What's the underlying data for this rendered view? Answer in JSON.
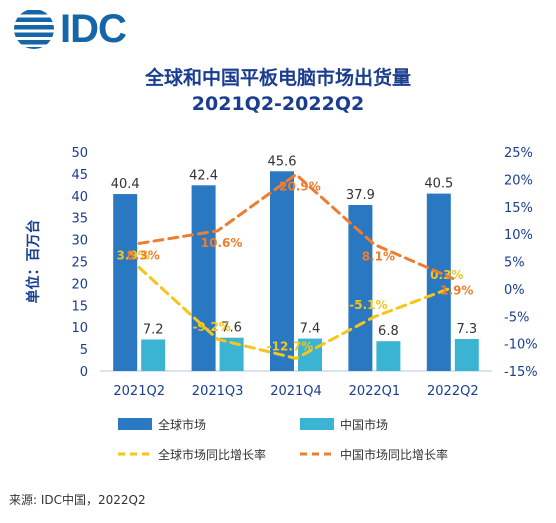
{
  "logo": {
    "text": "IDC"
  },
  "title_line1": "全球和中国平板电脑市场出货量",
  "title_line2": "2021Q2-2022Q2",
  "source": "来源: IDC中国，2022Q2",
  "chart_data": {
    "type": "bar",
    "categories": [
      "2021Q2",
      "2021Q3",
      "2021Q4",
      "2022Q1",
      "2022Q2"
    ],
    "ylabel": "单位：百万台",
    "ylim": [
      0,
      50
    ],
    "y_ticks": [
      "0",
      "5",
      "10",
      "15",
      "20",
      "25",
      "30",
      "35",
      "40",
      "45",
      "50"
    ],
    "y2lim": [
      -15,
      25
    ],
    "y2_ticks": [
      "-15%",
      "-10%",
      "-5%",
      "0%",
      "5%",
      "10%",
      "15%",
      "20%",
      "25%"
    ],
    "grid": false,
    "legend_position": "bottom",
    "series": [
      {
        "name": "全球市场",
        "kind": "bar",
        "axis": "left",
        "color": "#2b78c2",
        "values": [
          40.4,
          42.4,
          45.6,
          37.9,
          40.5
        ],
        "labels": [
          "40.4",
          "42.4",
          "45.6",
          "37.9",
          "40.5"
        ]
      },
      {
        "name": "中国市场",
        "kind": "bar",
        "axis": "left",
        "color": "#3bb3d3",
        "values": [
          7.2,
          7.6,
          7.4,
          6.8,
          7.3
        ],
        "labels": [
          "7.2",
          "7.6",
          "7.4",
          "6.8",
          "7.3"
        ]
      },
      {
        "name": "全球市场同比增长率",
        "kind": "line",
        "axis": "right",
        "color": "#f5c51b",
        "values": [
          3.9,
          -9.2,
          -12.7,
          -5.1,
          0.3
        ],
        "labels": [
          "3.9%",
          "-9.2%",
          "-12.7%",
          "-5.1%",
          "0.3%"
        ]
      },
      {
        "name": "中国市场同比增长率",
        "kind": "line",
        "axis": "right",
        "color": "#ee7d2f",
        "values": [
          8.3,
          10.6,
          20.9,
          8.1,
          1.9
        ],
        "labels": [
          "8.3%",
          "10.6%",
          "20.9%",
          "8.1%",
          "1.9%"
        ]
      }
    ]
  }
}
